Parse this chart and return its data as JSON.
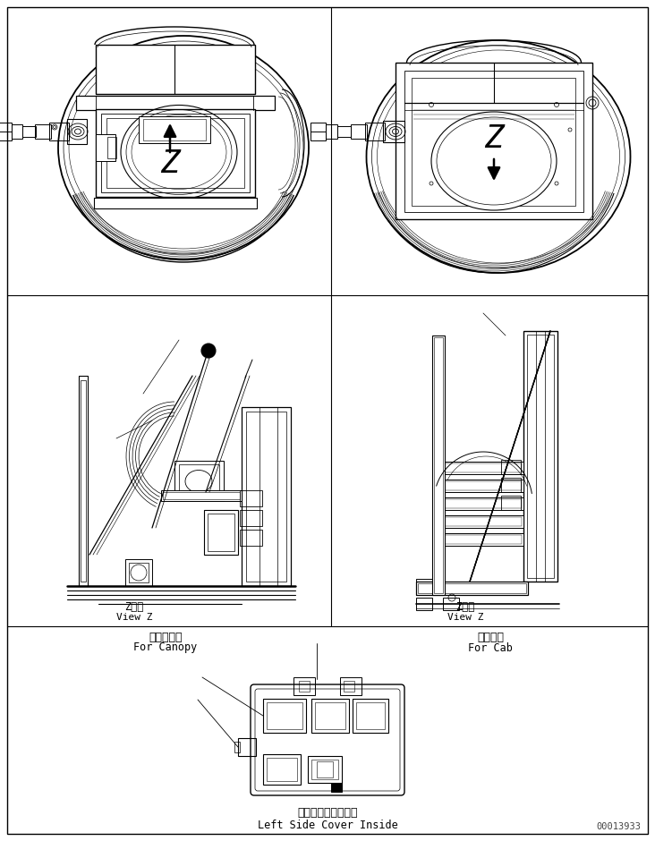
{
  "bg_color": "#ffffff",
  "line_color": "#000000",
  "fig_width": 7.32,
  "fig_height": 9.4,
  "dpi": 100,
  "left_canopy_jp": "キャノピ用",
  "left_canopy_en": "For Canopy",
  "right_cab_jp": "キャブ用",
  "right_cab_en": "For Cab",
  "view_z_jp": "Z　視",
  "view_z_en": "View Z",
  "bottom_jp": "左サイドカバー内側",
  "bottom_en": "Left Side Cover Inside",
  "part_number": "00013933"
}
